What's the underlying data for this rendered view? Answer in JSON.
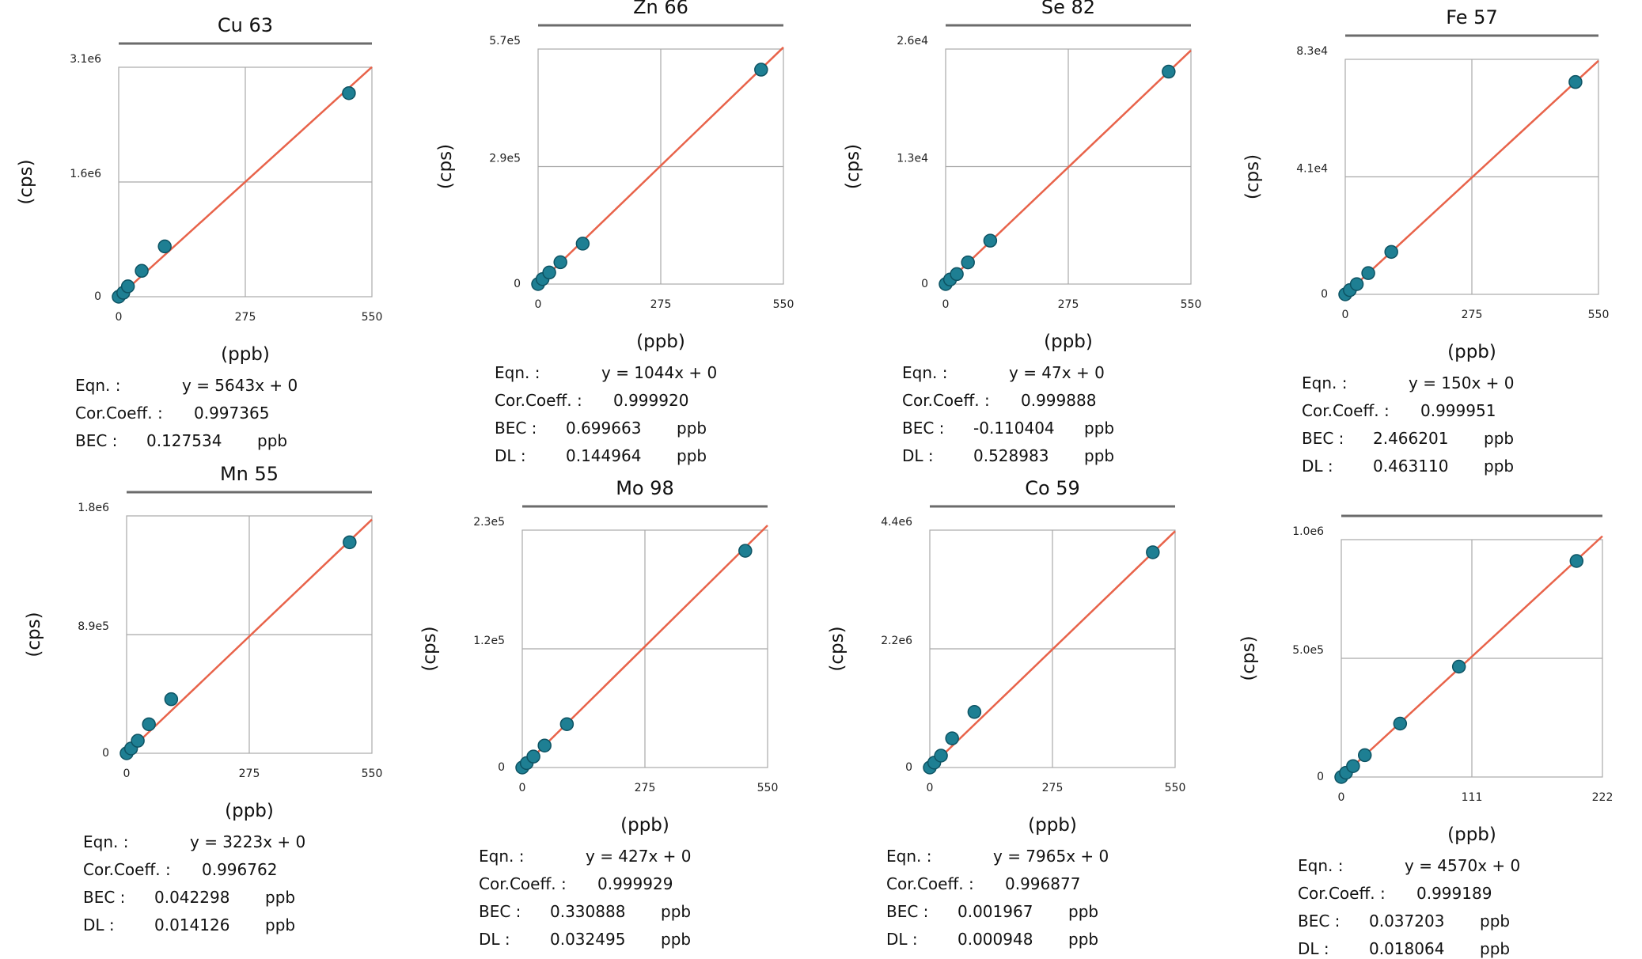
{
  "chart_data": [
    {
      "type": "scatter",
      "title": "Cu 63",
      "xlabel": "(ppb)",
      "ylabel": "(cps)",
      "xlim": [
        0,
        550
      ],
      "ylim": [
        0,
        3100000
      ],
      "x_ticks": [
        "0",
        "275",
        "550"
      ],
      "y_ticks": [
        "0",
        "1.6e6",
        "3.1e6"
      ],
      "grid": true,
      "fit_line": {
        "slope": 5643,
        "intercept": 0
      },
      "points": [
        [
          0,
          0
        ],
        [
          10,
          53000
        ],
        [
          20,
          140000
        ],
        [
          50,
          350000
        ],
        [
          100,
          680000
        ],
        [
          500,
          2750000
        ]
      ],
      "stats": {
        "eqn_label": "Eqn. :",
        "eqn": "y = 5643x + 0",
        "corr_label": "Cor.Coeff. :",
        "corr": "0.997365",
        "bec_label": "BEC :",
        "bec": "0.127534",
        "bec_unit": "ppb",
        "dl_label": "",
        "dl": "",
        "dl_unit": ""
      }
    },
    {
      "type": "scatter",
      "title": "Zn 66",
      "xlabel": "(ppb)",
      "ylabel": "(cps)",
      "xlim": [
        0,
        550
      ],
      "ylim": [
        0,
        570000
      ],
      "x_ticks": [
        "0",
        "275",
        "550"
      ],
      "y_ticks": [
        "0",
        "2.9e5",
        "5.7e5"
      ],
      "grid": true,
      "fit_line": {
        "slope": 1044,
        "intercept": 0
      },
      "points": [
        [
          0,
          0
        ],
        [
          10,
          12000
        ],
        [
          25,
          28000
        ],
        [
          50,
          53000
        ],
        [
          100,
          98000
        ],
        [
          500,
          520000
        ]
      ],
      "stats": {
        "eqn_label": "Eqn. :",
        "eqn": "y = 1044x + 0",
        "corr_label": "Cor.Coeff. :",
        "corr": "0.999920",
        "bec_label": "BEC :",
        "bec": "0.699663",
        "bec_unit": "ppb",
        "dl_label": "DL :",
        "dl": "0.144964",
        "dl_unit": "ppb"
      }
    },
    {
      "type": "scatter",
      "title": "Se 82",
      "xlabel": "(ppb)",
      "ylabel": "(cps)",
      "xlim": [
        0,
        550
      ],
      "ylim": [
        0,
        26000
      ],
      "x_ticks": [
        "0",
        "275",
        "550"
      ],
      "y_ticks": [
        "0",
        "1.3e4",
        "2.6e4"
      ],
      "grid": true,
      "fit_line": {
        "slope": 47,
        "intercept": 0
      },
      "points": [
        [
          0,
          0
        ],
        [
          10,
          500
        ],
        [
          25,
          1100
        ],
        [
          50,
          2400
        ],
        [
          100,
          4800
        ],
        [
          500,
          23500
        ]
      ],
      "stats": {
        "eqn_label": "Eqn. :",
        "eqn": "y = 47x + 0",
        "corr_label": "Cor.Coeff. :",
        "corr": "0.999888",
        "bec_label": "BEC :",
        "bec": "-0.110404",
        "bec_unit": "ppb",
        "dl_label": "DL :",
        "dl": "0.528983",
        "dl_unit": "ppb"
      }
    },
    {
      "type": "scatter",
      "title": "Fe 57",
      "xlabel": "(ppb)",
      "ylabel": "(cps)",
      "xlim": [
        0,
        550
      ],
      "ylim": [
        0,
        83000
      ],
      "x_ticks": [
        "0",
        "275",
        "550"
      ],
      "y_ticks": [
        "0",
        "4.1e4",
        "8.3e4"
      ],
      "grid": true,
      "fit_line": {
        "slope": 150,
        "intercept": 0
      },
      "points": [
        [
          0,
          0
        ],
        [
          10,
          1500
        ],
        [
          25,
          3600
        ],
        [
          50,
          7500
        ],
        [
          100,
          15000
        ],
        [
          500,
          75000
        ]
      ],
      "stats": {
        "eqn_label": "Eqn. :",
        "eqn": "y = 150x + 0",
        "corr_label": "Cor.Coeff. :",
        "corr": "0.999951",
        "bec_label": "BEC :",
        "bec": "2.466201",
        "bec_unit": "ppb",
        "dl_label": "DL :",
        "dl": "0.463110",
        "dl_unit": "ppb"
      }
    },
    {
      "type": "scatter",
      "title": "Mn 55",
      "xlabel": "(ppb)",
      "ylabel": "(cps)",
      "xlim": [
        0,
        550
      ],
      "ylim": [
        0,
        1800000
      ],
      "x_ticks": [
        "0",
        "275",
        "550"
      ],
      "y_ticks": [
        "0",
        "8.9e5",
        "1.8e6"
      ],
      "grid": true,
      "fit_line": {
        "slope": 3223,
        "intercept": 0
      },
      "points": [
        [
          0,
          0
        ],
        [
          10,
          36000
        ],
        [
          25,
          95000
        ],
        [
          50,
          220000
        ],
        [
          100,
          410000
        ],
        [
          500,
          1600000
        ]
      ],
      "stats": {
        "eqn_label": "Eqn. :",
        "eqn": "y = 3223x + 0",
        "corr_label": "Cor.Coeff. :",
        "corr": "0.996762",
        "bec_label": "BEC :",
        "bec": "0.042298",
        "bec_unit": "ppb",
        "dl_label": "DL :",
        "dl": "0.014126",
        "dl_unit": "ppb"
      }
    },
    {
      "type": "scatter",
      "title": "Mo 98",
      "xlabel": "(ppb)",
      "ylabel": "(cps)",
      "xlim": [
        0,
        550
      ],
      "ylim": [
        0,
        230000
      ],
      "x_ticks": [
        "0",
        "275",
        "550"
      ],
      "y_ticks": [
        "0",
        "1.2e5",
        "2.3e5"
      ],
      "grid": true,
      "fit_line": {
        "slope": 427,
        "intercept": 0
      },
      "points": [
        [
          0,
          0
        ],
        [
          10,
          4300
        ],
        [
          25,
          10600
        ],
        [
          50,
          21300
        ],
        [
          100,
          42000
        ],
        [
          500,
          210000
        ]
      ],
      "stats": {
        "eqn_label": "Eqn. :",
        "eqn": "y = 427x + 0",
        "corr_label": "Cor.Coeff. :",
        "corr": "0.999929",
        "bec_label": "BEC :",
        "bec": "0.330888",
        "bec_unit": "ppb",
        "dl_label": "DL :",
        "dl": "0.032495",
        "dl_unit": "ppb"
      }
    },
    {
      "type": "scatter",
      "title": "Co 59",
      "xlabel": "(ppb)",
      "ylabel": "(cps)",
      "xlim": [
        0,
        550
      ],
      "ylim": [
        0,
        4400000
      ],
      "x_ticks": [
        "0",
        "275",
        "550"
      ],
      "y_ticks": [
        "0",
        "2.2e6",
        "4.4e6"
      ],
      "grid": true,
      "fit_line": {
        "slope": 7965,
        "intercept": 0
      },
      "points": [
        [
          0,
          0
        ],
        [
          10,
          90000
        ],
        [
          25,
          220000
        ],
        [
          50,
          540000
        ],
        [
          100,
          1030000
        ],
        [
          500,
          3990000
        ]
      ],
      "stats": {
        "eqn_label": "Eqn. :",
        "eqn": "y = 7965x + 0",
        "corr_label": "Cor.Coeff. :",
        "corr": "0.996877",
        "bec_label": "BEC :",
        "bec": "0.001967",
        "bec_unit": "ppb",
        "dl_label": "DL :",
        "dl": "0.000948",
        "dl_unit": "ppb"
      }
    },
    {
      "type": "scatter",
      "title": "",
      "xlabel": "(ppb)",
      "ylabel": "(cps)",
      "xlim": [
        0,
        222
      ],
      "ylim": [
        0,
        1000000
      ],
      "x_ticks": [
        "0",
        "111",
        "222"
      ],
      "y_ticks": [
        "0",
        "5.0e5",
        "1.0e6"
      ],
      "grid": true,
      "fit_line": {
        "slope": 4570,
        "intercept": 0
      },
      "points": [
        [
          0,
          0
        ],
        [
          4,
          18000
        ],
        [
          10,
          46000
        ],
        [
          20,
          92000
        ],
        [
          50,
          225000
        ],
        [
          100,
          465000
        ],
        [
          200,
          910000
        ]
      ],
      "stats": {
        "eqn_label": "Eqn. :",
        "eqn": "y = 4570x + 0",
        "corr_label": "Cor.Coeff. :",
        "corr": "0.999189",
        "bec_label": "BEC :",
        "bec": "0.037203",
        "bec_unit": "ppb",
        "dl_label": "DL :",
        "dl": "0.018064",
        "dl_unit": "ppb"
      }
    }
  ],
  "colors": {
    "fit_line": "#e8634a",
    "point": "#1e7f93",
    "point_edge": "#0d5363",
    "grid": "#a9a9a9",
    "title_bar": "#6b6b6b"
  }
}
